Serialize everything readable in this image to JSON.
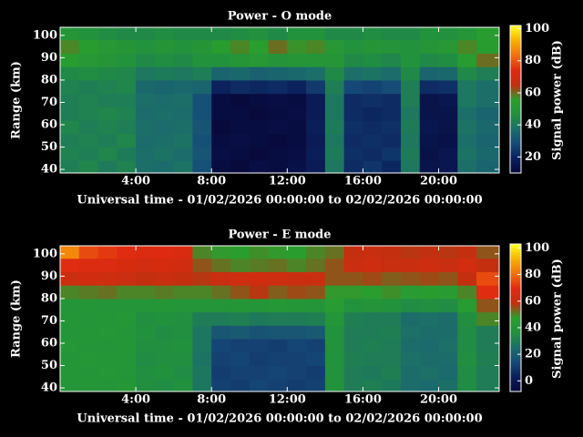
{
  "chart_data": [
    {
      "type": "heatmap",
      "title": "Power - O mode",
      "xlabel": "Universal time - 01/02/2026 00:00:00 to 02/02/2026 00:00:00",
      "ylabel": "Range (km)",
      "colorbar_label": "Signal power (dB)",
      "xlim": [
        0,
        23.2
      ],
      "xticks": [
        {
          "value": 4,
          "label": "4:00"
        },
        {
          "value": 8,
          "label": "8:00"
        },
        {
          "value": 12,
          "label": "12:00"
        },
        {
          "value": 16,
          "label": "16:00"
        },
        {
          "value": 20,
          "label": "20:00"
        }
      ],
      "ylim": [
        38.4,
        103.6
      ],
      "yticks": [
        40,
        50,
        60,
        70,
        80,
        90,
        100
      ],
      "x_bins": [
        0,
        1,
        2,
        3,
        4,
        5,
        6,
        7,
        8,
        9,
        10,
        11,
        12,
        13,
        14,
        15,
        16,
        17,
        18,
        19,
        20,
        21,
        22,
        23.2
      ],
      "y_bins": [
        38.4,
        44,
        50,
        56,
        62,
        68,
        74,
        80,
        86,
        92,
        98,
        103.6
      ],
      "clim": [
        10,
        102
      ],
      "cbar_ticks": [
        20,
        40,
        60,
        80,
        100
      ],
      "colorscale": [
        "#08083a",
        "#0a1e5a",
        "#164a78",
        "#1c6e6a",
        "#22903e",
        "#2a9e2e",
        "#c03010",
        "#e02a10",
        "#f07010",
        "#f8b000",
        "#ffff20"
      ],
      "z": [
        [
          42,
          44,
          41,
          43,
          38,
          37,
          39,
          30,
          12,
          11,
          13,
          12,
          14,
          18,
          40,
          22,
          24,
          21,
          40,
          15,
          16,
          38,
          35
        ],
        [
          43,
          42,
          44,
          41,
          38,
          39,
          37,
          31,
          13,
          12,
          11,
          12,
          13,
          19,
          41,
          23,
          22,
          24,
          41,
          14,
          16,
          39,
          36
        ],
        [
          42,
          43,
          42,
          44,
          37,
          38,
          39,
          30,
          12,
          13,
          12,
          11,
          12,
          18,
          40,
          22,
          23,
          22,
          40,
          15,
          14,
          38,
          35
        ],
        [
          44,
          42,
          43,
          42,
          38,
          37,
          38,
          31,
          11,
          12,
          12,
          13,
          12,
          19,
          41,
          23,
          22,
          23,
          41,
          16,
          15,
          39,
          36
        ],
        [
          42,
          43,
          44,
          43,
          37,
          38,
          37,
          30,
          12,
          12,
          11,
          12,
          13,
          18,
          40,
          22,
          21,
          22,
          40,
          15,
          15,
          38,
          35
        ],
        [
          42,
          43,
          42,
          42,
          38,
          37,
          38,
          30,
          12,
          11,
          12,
          13,
          12,
          18,
          40,
          22,
          23,
          22,
          42,
          15,
          16,
          40,
          38
        ],
        [
          43,
          42,
          43,
          44,
          36,
          35,
          36,
          35,
          20,
          22,
          21,
          22,
          20,
          25,
          42,
          28,
          27,
          29,
          42,
          22,
          23,
          40,
          38
        ],
        [
          45,
          46,
          45,
          44,
          40,
          41,
          40,
          42,
          35,
          36,
          34,
          35,
          36,
          38,
          45,
          38,
          39,
          37,
          45,
          35,
          36,
          45,
          42
        ],
        [
          55,
          52,
          50,
          48,
          45,
          46,
          45,
          48,
          48,
          50,
          52,
          49,
          50,
          50,
          50,
          45,
          46,
          44,
          48,
          45,
          46,
          55,
          60
        ],
        [
          58,
          55,
          52,
          50,
          48,
          50,
          48,
          50,
          55,
          58,
          56,
          60,
          57,
          58,
          52,
          48,
          50,
          49,
          48,
          50,
          52,
          58,
          55
        ],
        [
          50,
          48,
          46,
          45,
          45,
          46,
          45,
          45,
          45,
          46,
          47,
          45,
          48,
          48,
          45,
          45,
          46,
          45,
          45,
          48,
          47,
          50,
          55
        ]
      ]
    },
    {
      "type": "heatmap",
      "title": "Power - E mode",
      "xlabel": "Universal time - 01/02/2026 00:00:00 to 02/02/2026 00:00:00",
      "ylabel": "Range (km)",
      "colorbar_label": "Signal power (dB)",
      "xlim": [
        0,
        23.2
      ],
      "xticks": [
        {
          "value": 4,
          "label": "4:00"
        },
        {
          "value": 8,
          "label": "8:00"
        },
        {
          "value": 12,
          "label": "12:00"
        },
        {
          "value": 16,
          "label": "16:00"
        },
        {
          "value": 20,
          "label": "20:00"
        }
      ],
      "ylim": [
        38.4,
        103.6
      ],
      "yticks": [
        40,
        50,
        60,
        70,
        80,
        90,
        100
      ],
      "x_bins": [
        0,
        1,
        2,
        3,
        4,
        5,
        6,
        7,
        8,
        9,
        10,
        11,
        12,
        13,
        14,
        15,
        16,
        17,
        18,
        19,
        20,
        21,
        22,
        23.2
      ],
      "y_bins": [
        38.4,
        44,
        50,
        56,
        62,
        68,
        74,
        80,
        86,
        92,
        98,
        103.6
      ],
      "clim": [
        -8,
        103
      ],
      "cbar_ticks": [
        0,
        20,
        40,
        60,
        80,
        100
      ],
      "colorscale": [
        "#08083a",
        "#0a1e5a",
        "#164a78",
        "#1c6e6a",
        "#22903e",
        "#2a9e2e",
        "#c03010",
        "#e02a10",
        "#f07010",
        "#f8b000",
        "#ffff20"
      ],
      "z": [
        [
          40,
          41,
          40,
          42,
          36,
          35,
          37,
          28,
          12,
          11,
          13,
          12,
          11,
          12,
          38,
          30,
          31,
          29,
          25,
          24,
          26,
          35,
          30
        ],
        [
          41,
          40,
          42,
          40,
          36,
          37,
          35,
          28,
          11,
          12,
          12,
          13,
          12,
          11,
          38,
          30,
          29,
          31,
          25,
          26,
          24,
          35,
          30
        ],
        [
          40,
          42,
          41,
          41,
          35,
          36,
          36,
          27,
          12,
          13,
          11,
          12,
          12,
          13,
          38,
          31,
          30,
          30,
          26,
          25,
          25,
          36,
          31
        ],
        [
          42,
          40,
          40,
          41,
          36,
          36,
          37,
          28,
          13,
          12,
          12,
          11,
          13,
          12,
          38,
          30,
          31,
          30,
          25,
          24,
          26,
          35,
          30
        ],
        [
          40,
          41,
          42,
          40,
          37,
          35,
          36,
          28,
          18,
          19,
          17,
          18,
          18,
          19,
          38,
          30,
          30,
          31,
          26,
          25,
          25,
          35,
          30
        ],
        [
          41,
          40,
          41,
          42,
          36,
          37,
          36,
          30,
          30,
          31,
          29,
          30,
          30,
          31,
          40,
          31,
          30,
          30,
          25,
          26,
          25,
          36,
          50
        ],
        [
          40,
          41,
          40,
          40,
          40,
          41,
          40,
          40,
          40,
          41,
          40,
          42,
          41,
          40,
          45,
          38,
          39,
          38,
          35,
          36,
          35,
          45,
          55
        ],
        [
          50,
          51,
          52,
          50,
          50,
          51,
          50,
          50,
          52,
          55,
          58,
          54,
          56,
          55,
          48,
          48,
          47,
          49,
          45,
          46,
          45,
          50,
          70
        ],
        [
          62,
          64,
          63,
          62,
          60,
          61,
          60,
          58,
          62,
          63,
          64,
          63,
          62,
          62,
          55,
          55,
          56,
          54,
          55,
          56,
          55,
          60,
          75
        ],
        [
          70,
          68,
          68,
          66,
          65,
          66,
          64,
          55,
          52,
          50,
          51,
          52,
          50,
          52,
          55,
          62,
          63,
          61,
          62,
          63,
          62,
          65,
          60
        ],
        [
          85,
          75,
          72,
          70,
          68,
          69,
          67,
          50,
          48,
          47,
          49,
          48,
          47,
          50,
          52,
          60,
          61,
          60,
          58,
          59,
          58,
          60,
          55
        ]
      ]
    }
  ]
}
